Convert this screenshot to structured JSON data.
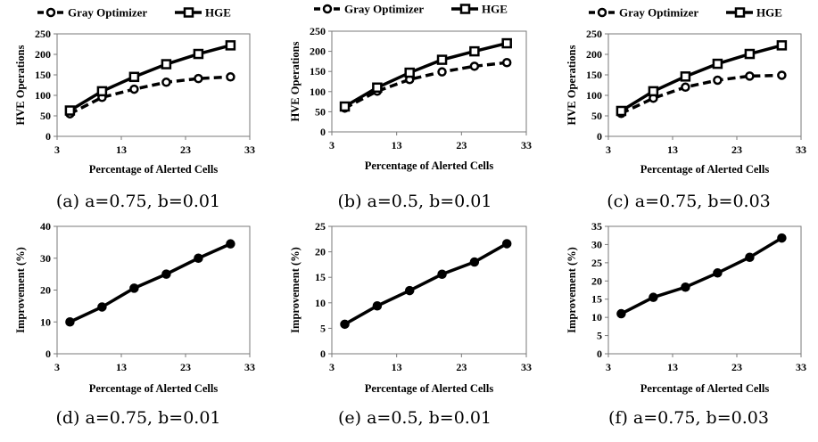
{
  "chart_data": [
    {
      "type": "line",
      "caption": "(a) a=0.75, b=0.01",
      "xlabel": "Percentage of Alerted Cells",
      "ylabel": "HVE Operations",
      "xticks": [
        3,
        13,
        23,
        33
      ],
      "yticks": [
        0,
        50,
        100,
        150,
        200,
        250
      ],
      "xlim": [
        3,
        33
      ],
      "ylim": [
        0,
        250
      ],
      "legend": "top",
      "grid": false,
      "x": [
        5,
        10,
        15,
        20,
        25,
        30
      ],
      "series": [
        {
          "name": "Gray Optimizer",
          "style": "dashed",
          "marker": "circle",
          "values": [
            55,
            95,
            115,
            132,
            141,
            145
          ]
        },
        {
          "name": "HGE",
          "style": "solid",
          "marker": "square",
          "values": [
            63,
            110,
            145,
            176,
            201,
            222
          ]
        }
      ]
    },
    {
      "type": "line",
      "caption": "(b) a=0.5, b=0.01",
      "xlabel": "Percentage of Alerted Cells",
      "ylabel": "HVE Operations",
      "xticks": [
        3,
        13,
        23,
        33
      ],
      "yticks": [
        0,
        50,
        100,
        150,
        200,
        250
      ],
      "xlim": [
        3,
        33
      ],
      "ylim": [
        0,
        250
      ],
      "legend": "top",
      "grid": false,
      "x": [
        5,
        10,
        15,
        20,
        25,
        30
      ],
      "series": [
        {
          "name": "Gray Optimizer",
          "style": "dashed",
          "marker": "circle",
          "values": [
            59,
            101,
            130,
            149,
            163,
            172
          ]
        },
        {
          "name": "HGE",
          "style": "solid",
          "marker": "square",
          "values": [
            63,
            110,
            147,
            179,
            200,
            220
          ]
        }
      ]
    },
    {
      "type": "line",
      "caption": "(c) a=0.75, b=0.03",
      "xlabel": "Percentage of Alerted Cells",
      "ylabel": "HVE Operations",
      "xticks": [
        3,
        13,
        23,
        33
      ],
      "yticks": [
        0,
        50,
        100,
        150,
        200,
        250
      ],
      "xlim": [
        3,
        33
      ],
      "ylim": [
        0,
        250
      ],
      "legend": "top",
      "grid": false,
      "x": [
        5,
        10,
        15,
        20,
        25,
        30
      ],
      "series": [
        {
          "name": "Gray Optimizer",
          "style": "dashed",
          "marker": "circle",
          "values": [
            56,
            93,
            120,
            137,
            147,
            149
          ]
        },
        {
          "name": "HGE",
          "style": "solid",
          "marker": "square",
          "values": [
            62,
            110,
            146,
            177,
            201,
            222
          ]
        }
      ]
    },
    {
      "type": "line",
      "caption": "(d) a=0.75, b=0.01",
      "xlabel": "Percentage of Alerted Cells",
      "ylabel": "Improvement (%)",
      "xticks": [
        3,
        13,
        23,
        33
      ],
      "yticks": [
        0,
        10,
        20,
        30,
        40
      ],
      "xlim": [
        3,
        33
      ],
      "ylim": [
        0,
        40
      ],
      "grid": false,
      "x": [
        5,
        10,
        15,
        20,
        25,
        30
      ],
      "series": [
        {
          "name": "",
          "style": "solid",
          "marker": "circle",
          "values": [
            10,
            14.7,
            20.6,
            25,
            30,
            34.5
          ]
        }
      ]
    },
    {
      "type": "line",
      "caption": "(e) a=0.5, b=0.01",
      "xlabel": "Percentage of Alerted Cells",
      "ylabel": "Improvement (%)",
      "xticks": [
        3,
        13,
        23,
        33
      ],
      "yticks": [
        0,
        5,
        10,
        15,
        20,
        25
      ],
      "xlim": [
        3,
        33
      ],
      "ylim": [
        0,
        25
      ],
      "grid": false,
      "x": [
        5,
        10,
        15,
        20,
        25,
        30
      ],
      "series": [
        {
          "name": "",
          "style": "solid",
          "marker": "circle",
          "values": [
            5.8,
            9.4,
            12.4,
            15.6,
            18,
            21.6
          ]
        }
      ]
    },
    {
      "type": "line",
      "caption": "(f) a=0.75, b=0.03",
      "xlabel": "Percentage of Alerted Cells",
      "ylabel": "Improvement (%)",
      "xticks": [
        3,
        13,
        23,
        33
      ],
      "yticks": [
        0,
        5,
        10,
        15,
        20,
        25,
        30,
        35
      ],
      "xlim": [
        3,
        33
      ],
      "ylim": [
        0,
        35
      ],
      "grid": false,
      "x": [
        5,
        10,
        15,
        20,
        25,
        30
      ],
      "series": [
        {
          "name": "",
          "style": "solid",
          "marker": "circle",
          "values": [
            11,
            15.5,
            18.3,
            22.2,
            26.5,
            31.8
          ]
        }
      ]
    }
  ]
}
